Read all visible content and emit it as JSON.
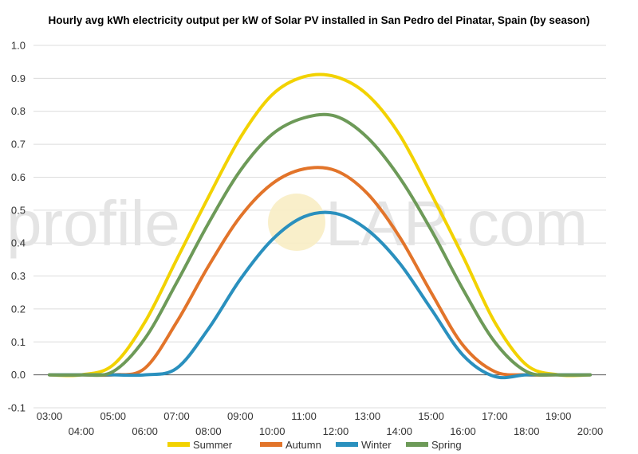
{
  "chart_data": {
    "type": "line",
    "title": "Hourly avg kWh electricity output per kW of Solar PV installed in San Pedro del Pinatar, Spain (by season)",
    "xlabel": "",
    "ylabel": "",
    "ylim": [
      -0.1,
      1.0
    ],
    "yticks": [
      "-0.1",
      "0.0",
      "0.1",
      "0.2",
      "0.3",
      "0.4",
      "0.5",
      "0.6",
      "0.7",
      "0.8",
      "0.9",
      "1.0"
    ],
    "x": [
      "03:00",
      "04:00",
      "05:00",
      "06:00",
      "07:00",
      "08:00",
      "09:00",
      "10:00",
      "11:00",
      "12:00",
      "13:00",
      "14:00",
      "15:00",
      "16:00",
      "17:00",
      "18:00",
      "19:00",
      "20:00"
    ],
    "grid": true,
    "legend": "bottom",
    "series": [
      {
        "name": "Summer",
        "color": "#f2d200",
        "values": [
          0.0,
          0.0,
          0.03,
          0.16,
          0.35,
          0.54,
          0.72,
          0.85,
          0.905,
          0.905,
          0.85,
          0.73,
          0.55,
          0.36,
          0.16,
          0.03,
          0.0,
          0.0
        ]
      },
      {
        "name": "Autumn",
        "color": "#e2742a",
        "values": [
          0.0,
          0.0,
          0.0,
          0.02,
          0.16,
          0.33,
          0.48,
          0.58,
          0.625,
          0.62,
          0.55,
          0.42,
          0.25,
          0.09,
          0.01,
          0.0,
          0.0,
          0.0
        ]
      },
      {
        "name": "Winter",
        "color": "#2a90be",
        "values": [
          0.0,
          0.0,
          0.0,
          0.0,
          0.02,
          0.14,
          0.29,
          0.41,
          0.48,
          0.49,
          0.44,
          0.34,
          0.2,
          0.06,
          -0.005,
          0.0,
          0.0,
          0.0
        ]
      },
      {
        "name": "Spring",
        "color": "#6d9a58",
        "values": [
          0.0,
          0.0,
          0.01,
          0.11,
          0.28,
          0.46,
          0.62,
          0.73,
          0.78,
          0.785,
          0.72,
          0.6,
          0.44,
          0.26,
          0.1,
          0.01,
          0.0,
          0.0
        ]
      }
    ]
  },
  "watermark": {
    "left": "profile",
    "right": "LAR.com"
  }
}
